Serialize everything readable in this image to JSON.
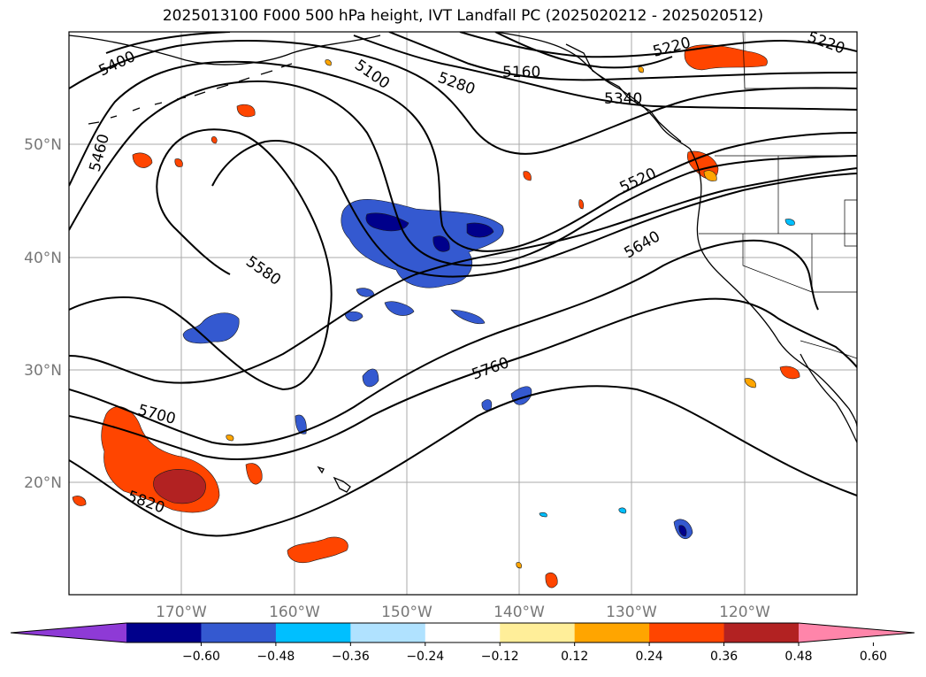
{
  "title": "2025013100 F000 500 hPa height, IVT Landfall PC (2025020212 - 2025020512)",
  "axes": {
    "lon_labels": [
      "170°W",
      "160°W",
      "150°W",
      "140°W",
      "130°W",
      "120°W"
    ],
    "lat_labels": [
      "50°N",
      "40°N",
      "30°N",
      "20°N"
    ]
  },
  "contours": {
    "color": "#000000",
    "labels": [
      "5400",
      "5460",
      "5100",
      "5160",
      "5220",
      "5220",
      "5280",
      "5340",
      "5520",
      "5580",
      "5640",
      "5700",
      "5760",
      "5820"
    ]
  },
  "colorbar": {
    "ticks": [
      "−0.60",
      "−0.48",
      "−0.36",
      "−0.24",
      "−0.12",
      "0.12",
      "0.24",
      "0.36",
      "0.48",
      "0.60"
    ],
    "colors": [
      "#8e3ad6",
      "#00008b",
      "#3459d0",
      "#00bfff",
      "#b0e2ff",
      "#ffffff",
      "#ffee99",
      "#ffa500",
      "#ff4500",
      "#b22222",
      "#ff85aa"
    ]
  }
}
